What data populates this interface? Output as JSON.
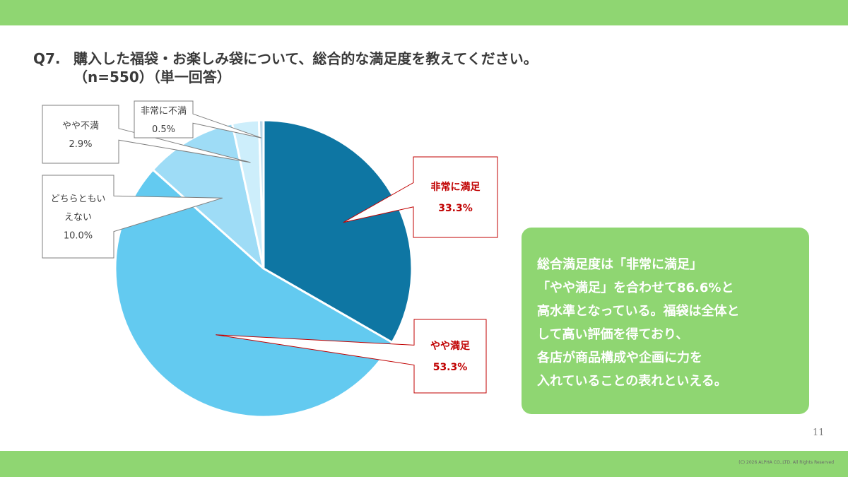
{
  "theme": {
    "band_color": "#8fd672"
  },
  "question": {
    "number": "Q7.",
    "text": "購入した福袋・お楽しみ袋について、総合的な満足度を教えてください。",
    "subtext": "（n=550）（単一回答）"
  },
  "chart_data": {
    "type": "pie",
    "title": "",
    "start": "12 o'clock, clockwise",
    "slices": [
      {
        "name": "非常に満足",
        "value": 33.3,
        "label": "33.3%",
        "color": "#0e76a3",
        "highlight": true
      },
      {
        "name": "やや満足",
        "value": 53.3,
        "label": "53.3%",
        "color": "#63caf0",
        "highlight": true
      },
      {
        "name": "どちらともいえない",
        "value": 10.0,
        "label": "10.0%",
        "color": "#9edcf6",
        "highlight": false
      },
      {
        "name": "やや不満",
        "value": 2.9,
        "label": "2.9%",
        "color": "#cdeefb",
        "highlight": false
      },
      {
        "name": "非常に不満",
        "value": 0.5,
        "label": "0.5%",
        "color": "#b8d7e8",
        "highlight": false
      }
    ]
  },
  "summary": {
    "lines": [
      "総合満足度は「非常に満足」",
      "「やや満足」を合わせて86.6%と",
      "高水準となっている。福袋は全体と",
      "して高い評価を得ており、",
      "各店が商品構成や企画に力を",
      "入れていることの表れといえる。"
    ]
  },
  "page_number": "11",
  "copyright": "(C) 2026 ALPHA CO.,LTD. All Rights Reserved"
}
